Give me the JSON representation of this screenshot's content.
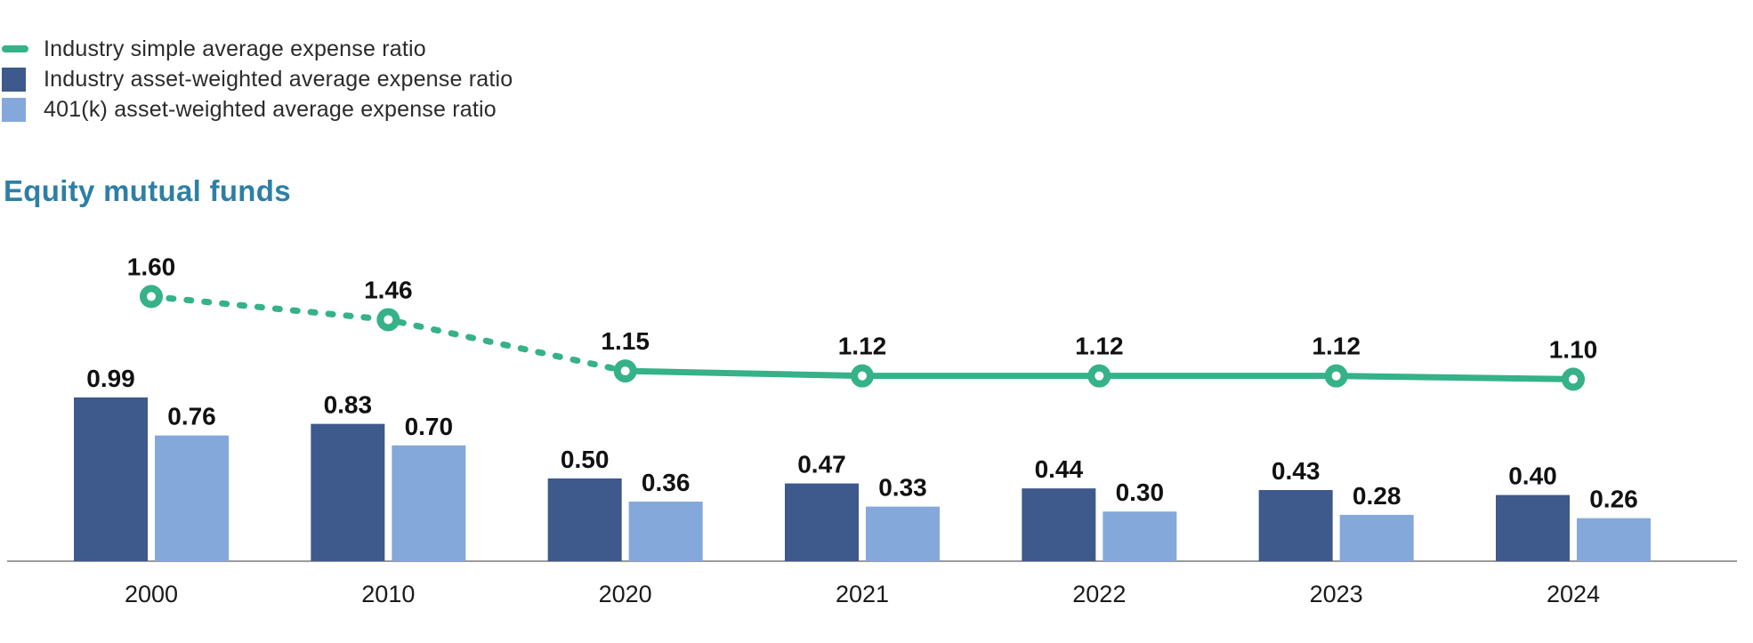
{
  "page": {
    "background": "#ffffff"
  },
  "legend": {
    "items": [
      {
        "label": "Industry simple average expense ratio",
        "swatch": "line",
        "color": "#35B287"
      },
      {
        "label": "Industry asset-weighted average expense ratio",
        "swatch": "square",
        "color": "#3E598C"
      },
      {
        "label": "401(k) asset-weighted average expense ratio",
        "swatch": "square",
        "color": "#85A8DB"
      }
    ]
  },
  "section_title": {
    "text": "Equity mutual funds",
    "color": "#2E7FA6"
  },
  "chart_data": {
    "type": "combo-bar-line",
    "title": "Equity mutual funds",
    "categories": [
      "2000",
      "2010",
      "2020",
      "2021",
      "2022",
      "2023",
      "2024"
    ],
    "series": [
      {
        "name": "Industry simple average expense ratio",
        "type": "line",
        "color": "#35B287",
        "values": [
          1.6,
          1.46,
          1.15,
          1.12,
          1.12,
          1.12,
          1.1
        ],
        "dashed_until_category": "2020",
        "marker": "open-circle"
      },
      {
        "name": "Industry asset-weighted average expense ratio",
        "type": "bar",
        "color": "#3E598C",
        "values": [
          0.99,
          0.83,
          0.5,
          0.47,
          0.44,
          0.43,
          0.4
        ]
      },
      {
        "name": "401(k) asset-weighted average expense ratio",
        "type": "bar",
        "color": "#85A8DB",
        "values": [
          0.76,
          0.7,
          0.36,
          0.33,
          0.3,
          0.28,
          0.26
        ]
      }
    ],
    "xlabel": "",
    "ylabel": "",
    "ylim": [
      0,
      1.7
    ],
    "grid": false,
    "value_labels": true,
    "legend_position": "top-left",
    "axis_line_color": "#9B9B9B",
    "label_color": "#111111",
    "tick_label_color": "#1a1a1a"
  }
}
